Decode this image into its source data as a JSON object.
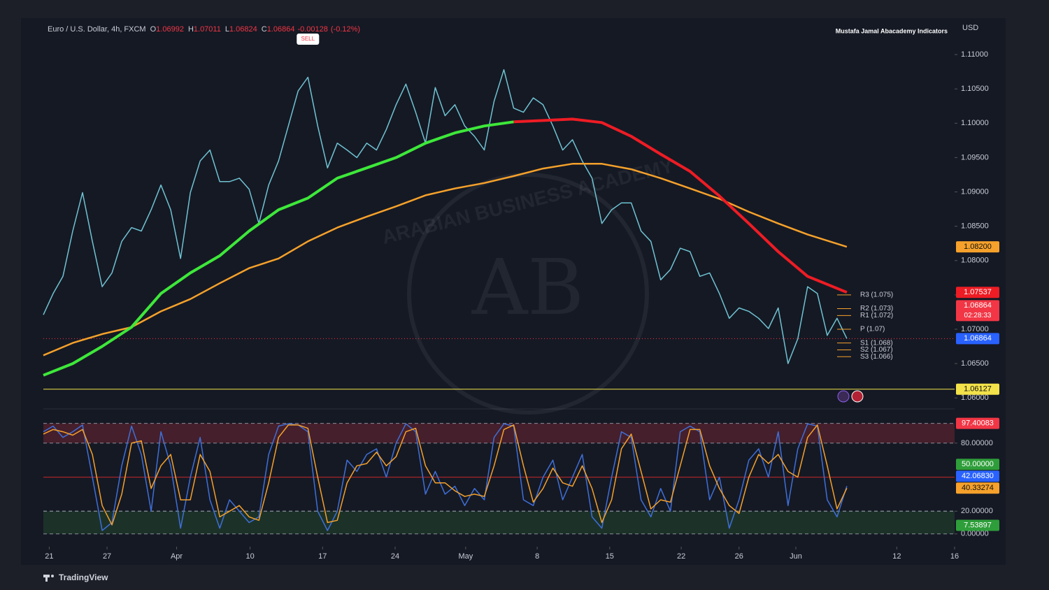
{
  "chart_data": [
    {
      "type": "line",
      "header": {
        "symbol": "Euro / U.S. Dollar, 4h, FXCM",
        "ohlc": [
          {
            "key": "O",
            "value": 1.06992
          },
          {
            "key": "H",
            "value": 1.07011
          },
          {
            "key": "L",
            "value": 1.06824
          },
          {
            "key": "C",
            "value": 1.06864
          }
        ],
        "change": -0.00128,
        "change_pct": "(-0.12%)"
      },
      "indicator": "Mustafa Jamal Abacademy Indicators",
      "currency": "USD",
      "watermark": "AB",
      "watermark_text": "ARABIAN BUSINESS ACADEMY",
      "footer": "TradingView",
      "xlim": [
        0,
        93
      ],
      "xticks": [
        {
          "value": 0.6,
          "label": "21"
        },
        {
          "value": 6.5,
          "label": "27"
        },
        {
          "value": 13.6,
          "label": "Apr"
        },
        {
          "value": 21.1,
          "label": "10"
        },
        {
          "value": 28.5,
          "label": "17"
        },
        {
          "value": 35.9,
          "label": "24"
        },
        {
          "value": 43.1,
          "label": "May"
        },
        {
          "value": 50.4,
          "label": "8"
        },
        {
          "value": 57.8,
          "label": "15"
        },
        {
          "value": 65.1,
          "label": "22"
        },
        {
          "value": 71,
          "label": "26"
        },
        {
          "value": 76.8,
          "label": "Jun"
        },
        {
          "value": 87.1,
          "label": "12"
        },
        {
          "value": 93,
          "label": "16"
        }
      ],
      "ylim": [
        1.0589,
        1.1151
      ],
      "yticks": [
        {
          "value": 1.06,
          "label": "1.06000"
        },
        {
          "value": 1.065,
          "label": "1.06500"
        },
        {
          "value": 1.07,
          "label": "1.07000"
        },
        {
          "value": 1.075,
          "label": "1.07500"
        },
        {
          "value": 1.08,
          "label": "1.08000"
        },
        {
          "value": 1.085,
          "label": "1.08500"
        },
        {
          "value": 1.09,
          "label": "1.09000"
        },
        {
          "value": 1.095,
          "label": "1.09500"
        },
        {
          "value": 1.1,
          "label": "1.10000"
        },
        {
          "value": 1.105,
          "label": "1.10500"
        },
        {
          "value": 1.11,
          "label": "1.11000"
        }
      ],
      "series": [
        {
          "color": "#6fc3d2",
          "width": 1.5,
          "values": [
            1.0721,
            1.0752,
            1.0777,
            1.0843,
            1.0899,
            1.0828,
            1.0762,
            1.0782,
            1.0828,
            1.0848,
            1.0843,
            1.0874,
            1.091,
            1.0874,
            1.0803,
            1.0899,
            1.0945,
            1.0961,
            1.0915,
            1.0915,
            1.092,
            1.0904,
            1.0854,
            1.091,
            1.0945,
            1.0996,
            1.1047,
            1.1067,
            1.0996,
            1.0935,
            1.0971,
            1.0961,
            1.095,
            1.0971,
            1.0961,
            1.0991,
            1.1027,
            1.1057,
            1.1016,
            1.0971,
            1.1052,
            1.1011,
            1.1027,
            1.0996,
            1.0981,
            1.0961,
            1.1032,
            1.1078,
            1.1022,
            1.1016,
            1.1037,
            1.1027,
            1.0996,
            1.0961,
            1.0976,
            1.0945,
            1.092,
            1.0854,
            1.0874,
            1.0884,
            1.0884,
            1.0843,
            1.0828,
            1.0772,
            1.0787,
            1.0818,
            1.0813,
            1.0777,
            1.0782,
            1.0752,
            1.0716,
            1.0731,
            1.0726,
            1.0716,
            1.0701,
            1.0731,
            1.065,
            1.0686,
            1.0762,
            1.0752,
            1.0691,
            1.0716,
            1.06864
          ]
        },
        {
          "color": "#f5a12b",
          "width": 2.5,
          "x": [
            0,
            3,
            6,
            9,
            12,
            15,
            18,
            21,
            24,
            27,
            30,
            33,
            36,
            39,
            42,
            45,
            48,
            51,
            54,
            57,
            60,
            63,
            66,
            69,
            72,
            75,
            78,
            82
          ],
          "values": [
            1.0662,
            1.068,
            1.0693,
            1.0703,
            1.0726,
            1.0744,
            1.0767,
            1.0789,
            1.0803,
            1.0828,
            1.0848,
            1.0864,
            1.0879,
            1.0895,
            1.0905,
            1.0913,
            1.0923,
            1.0934,
            1.0941,
            1.0941,
            1.0933,
            1.092,
            1.0905,
            1.089,
            1.0871,
            1.0854,
            1.0838,
            1.082
          ]
        },
        {
          "color": "#3ee83a",
          "width": 4,
          "x": [
            0,
            3,
            6,
            9,
            12,
            15,
            18,
            21,
            24,
            27,
            30,
            33,
            36,
            39,
            42,
            45,
            48
          ],
          "values": [
            1.0633,
            1.065,
            1.0675,
            1.0703,
            1.0752,
            1.0782,
            1.0807,
            1.0843,
            1.0874,
            1.0891,
            1.092,
            1.0935,
            1.095,
            1.0971,
            1.0986,
            1.0996,
            1.1002
          ]
        },
        {
          "color": "#ee1c24",
          "width": 4,
          "x": [
            48,
            51,
            54,
            57,
            60,
            63,
            66,
            69,
            72,
            75,
            78,
            82
          ],
          "values": [
            1.1002,
            1.1004,
            1.1006,
            1.1001,
            1.0981,
            1.0955,
            1.093,
            1.0894,
            1.0854,
            1.0813,
            1.0777,
            1.07537
          ]
        }
      ],
      "annotation": {
        "text": "SELL",
        "x": 27
      },
      "pivots": [
        {
          "value": 1.075,
          "label": "R3 (1.075)"
        },
        {
          "value": 1.073,
          "label": "R2 (1.073)"
        },
        {
          "value": 1.072,
          "label": "R1 (1.072)"
        },
        {
          "value": 1.07,
          "label": "P (1.07)"
        },
        {
          "value": 1.068,
          "label": "S1 (1.068)"
        },
        {
          "value": 1.067,
          "label": "S2 (1.067)"
        },
        {
          "value": 1.066,
          "label": "S3 (1.066)"
        }
      ],
      "hlines": [
        {
          "value": 1.06127,
          "color": "#f3e24a",
          "dash": false
        },
        {
          "value": 1.06864,
          "color": "#f23645",
          "dash": true
        }
      ],
      "price_labels": [
        {
          "value": 1.082,
          "label": "1.08200",
          "color": "#f5a12b"
        },
        {
          "value": 1.07537,
          "label": "1.07537",
          "color": "#ee1c24"
        },
        {
          "value": 1.06864,
          "label": "1.06864",
          "color": "#f23645",
          "countdown": "02:28:33"
        },
        {
          "value": 1.06864,
          "label": "1.06864",
          "color": "#2962ff"
        },
        {
          "value": 1.06127,
          "label": "1.06127",
          "color": "#f3e24a"
        }
      ]
    },
    {
      "type": "line",
      "ylim": [
        -10,
        107
      ],
      "yticks": [
        {
          "value": 0,
          "label": "0.00000"
        },
        {
          "value": 20,
          "label": "20.00000"
        },
        {
          "value": 80,
          "label": "80.00000"
        }
      ],
      "bands": [
        {
          "from": 80,
          "to": 97.40083,
          "color": "rgba(242,54,69,0.22)"
        },
        {
          "from": 0,
          "to": 20,
          "color": "rgba(56,142,60,0.22)"
        }
      ],
      "series": [
        {
          "color": "#3f6fd8",
          "width": 1.5,
          "values": [
            90,
            95,
            85,
            90,
            96,
            50,
            3,
            10,
            60,
            95,
            70,
            20,
            90,
            60,
            5,
            50,
            85,
            30,
            5,
            30,
            20,
            10,
            15,
            70,
            95,
            97,
            96,
            90,
            20,
            3,
            20,
            65,
            55,
            70,
            75,
            50,
            80,
            97,
            90,
            35,
            55,
            35,
            42,
            25,
            40,
            30,
            85,
            97,
            95,
            30,
            25,
            50,
            65,
            30,
            50,
            70,
            15,
            5,
            50,
            90,
            85,
            30,
            15,
            40,
            20,
            90,
            95,
            90,
            30,
            50,
            5,
            30,
            65,
            75,
            50,
            90,
            25,
            75,
            97,
            95,
            30,
            15,
            42.0683
          ]
        },
        {
          "color": "#f5a12b",
          "width": 1.5,
          "values": [
            88,
            92,
            90,
            87,
            92,
            70,
            25,
            8,
            35,
            80,
            82,
            40,
            60,
            70,
            30,
            30,
            70,
            55,
            15,
            20,
            25,
            15,
            12,
            45,
            85,
            96,
            96,
            93,
            50,
            10,
            12,
            45,
            60,
            62,
            72,
            60,
            68,
            90,
            93,
            60,
            45,
            45,
            38,
            33,
            35,
            33,
            60,
            92,
            96,
            60,
            28,
            40,
            58,
            45,
            42,
            60,
            40,
            10,
            30,
            75,
            88,
            55,
            22,
            30,
            28,
            60,
            92,
            92,
            60,
            40,
            25,
            18,
            50,
            70,
            62,
            70,
            55,
            50,
            85,
            96,
            60,
            22,
            40.33274
          ]
        }
      ],
      "midline": {
        "value": 50,
        "color": "#c62828"
      },
      "price_labels": [
        {
          "value": 97.40083,
          "label": "97.40083",
          "color": "#f23645"
        },
        {
          "value": 50,
          "label": "50.00000",
          "color": "#2e9e3a"
        },
        {
          "value": 42.0683,
          "label": "42.06830",
          "color": "#2962ff"
        },
        {
          "value": 40.33274,
          "label": "40.33274",
          "color": "#f5a12b"
        },
        {
          "value": 7.53897,
          "label": "7.53897",
          "color": "#2e9e3a"
        }
      ]
    }
  ]
}
